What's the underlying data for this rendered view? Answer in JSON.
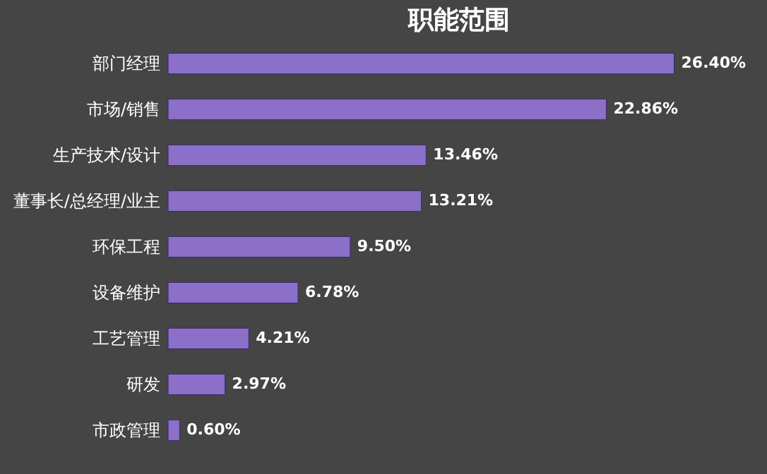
{
  "chart_data": {
    "type": "bar",
    "orientation": "horizontal",
    "title": "职能范围",
    "categories": [
      "部门经理",
      "市场/销售",
      "生产技术/设计",
      "董事长/总经理/业主",
      "环保工程",
      "设备维护",
      "工艺管理",
      "研发",
      "市政管理"
    ],
    "values": [
      26.4,
      22.86,
      13.46,
      13.21,
      9.5,
      6.78,
      4.21,
      2.97,
      0.6
    ],
    "value_labels": [
      "26.40%",
      "22.86%",
      "13.46%",
      "13.21%",
      "9.50%",
      "6.78%",
      "4.21%",
      "2.97%",
      "0.60%"
    ],
    "color": "#8b6fc8",
    "grid": false,
    "tick_labels": "y"
  }
}
